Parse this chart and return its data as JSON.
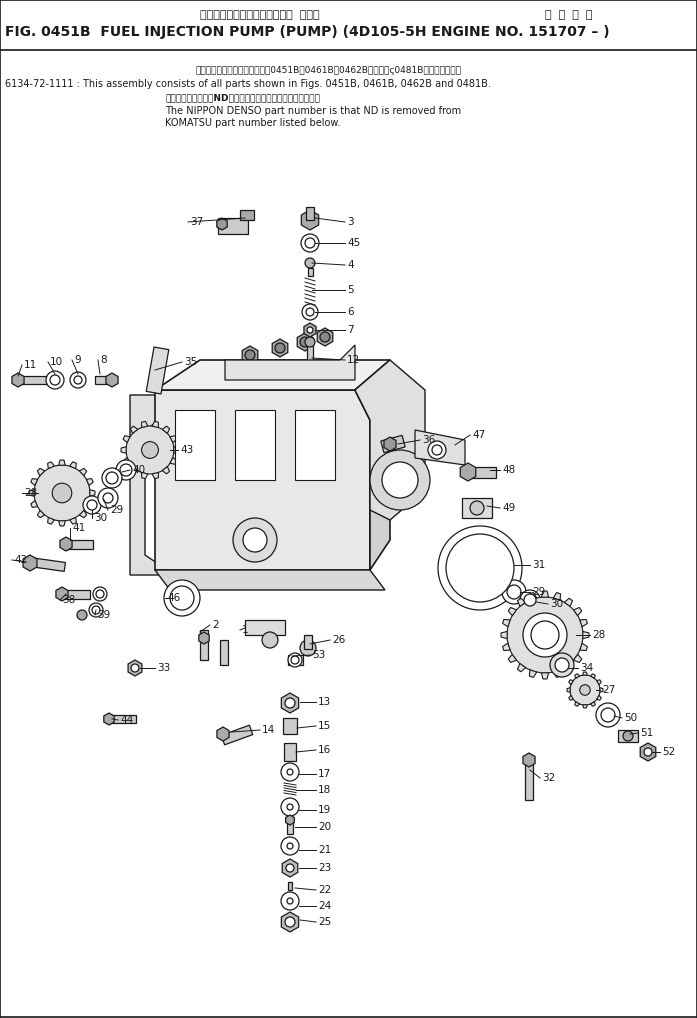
{
  "title_jp_left": "フェルインジェクションポンプ  ポンプ",
  "title_jp_right": "適  用  号  機",
  "title_en": "FIG. 0451B  FUEL INJECTION PUMP (PUMP) (4D105-5H ENGINE NO. 151707 – )",
  "note1_jp": "このアセンブリの構成部品は困0451B、0461B、0462B図およびҁ0481B図を含みます。",
  "note1_en": "6134-72-1111 : This assembly consists of all parts shown in Figs. 0451B, 0461B, 0462B and 0481B.",
  "note2_jp": "品番のメーカー記号NDを除いたものが日本電装の品番です。",
  "note2_en1": "The NIPPON DENSO part number is that ND is removed from",
  "note2_en2": "KOMATSU part number listed below.",
  "bg": "#ffffff"
}
